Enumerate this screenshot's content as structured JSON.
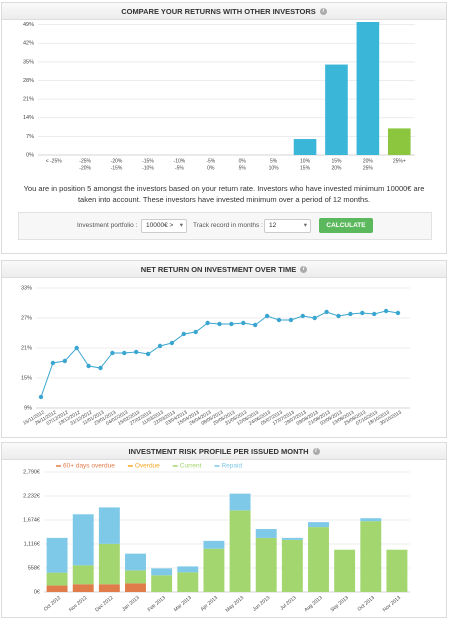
{
  "chart_data": [
    {
      "type": "bar",
      "title": "COMPARE YOUR RETURNS WITH OTHER INVESTORS",
      "categories": [
        [
          "< -25%"
        ],
        [
          "-25%",
          "-20%"
        ],
        [
          "-20%",
          "-15%"
        ],
        [
          "-15%",
          "-10%"
        ],
        [
          "-10%",
          "-5%"
        ],
        [
          "-5%",
          "0%"
        ],
        [
          "0%",
          "5%"
        ],
        [
          "5%",
          "10%"
        ],
        [
          "10%",
          "15%"
        ],
        [
          "15%",
          "20%"
        ],
        [
          "20%",
          "25%"
        ],
        [
          "25%+"
        ]
      ],
      "values": [
        0,
        0,
        0,
        0,
        0,
        0,
        0,
        0,
        6,
        34,
        50,
        10
      ],
      "colors": [
        "#3ab6d9",
        "#3ab6d9",
        "#3ab6d9",
        "#3ab6d9",
        "#3ab6d9",
        "#3ab6d9",
        "#3ab6d9",
        "#3ab6d9",
        "#3ab6d9",
        "#3ab6d9",
        "#3ab6d9",
        "#8cc63f"
      ],
      "ylim": [
        0,
        50
      ],
      "yticks": [
        {
          "value": 0,
          "label": "0%"
        },
        {
          "value": 7,
          "label": "7%"
        },
        {
          "value": 14,
          "label": "14%"
        },
        {
          "value": 21,
          "label": "21%"
        },
        {
          "value": 28,
          "label": "28%"
        },
        {
          "value": 35,
          "label": "35%"
        },
        {
          "value": 42,
          "label": "42%"
        },
        {
          "value": 49,
          "label": "49%"
        }
      ],
      "grid": true
    },
    {
      "type": "line",
      "title": "NET RETURN ON INVESTMENT OVER TIME",
      "x": [
        "15/11/2012",
        "26/11/2012",
        "07/12/2012",
        "19/12/2012",
        "31/12/2012",
        "11/01/2013",
        "23/01/2013",
        "04/02/2013",
        "15/02/2013",
        "27/02/2013",
        "11/03/2013",
        "22/03/2013",
        "03/04/2013",
        "15/04/2013",
        "26/04/2013",
        "08/05/2013",
        "20/05/2013",
        "31/05/2013",
        "12/06/2013",
        "24/06/2013",
        "05/07/2013",
        "17/07/2013",
        "29/07/2013",
        "09/08/2013",
        "21/08/2013",
        "02/09/2013",
        "13/09/2013",
        "25/09/2013",
        "07/10/2013",
        "18/10/2013",
        "30/10/2013"
      ],
      "values": [
        11.2,
        18,
        18.4,
        21,
        17.4,
        17,
        20,
        20,
        20.2,
        19.8,
        21.4,
        22,
        23.8,
        24.2,
        26,
        25.8,
        25.8,
        26,
        25.6,
        27.4,
        26.6,
        26.6,
        27.4,
        27,
        28.2,
        27.4,
        27.8,
        28,
        27.8,
        28.4,
        28
      ],
      "color": "#3aa6d0",
      "ylim": [
        9,
        33
      ],
      "yticks": [
        {
          "value": 9,
          "label": "9%"
        },
        {
          "value": 15,
          "label": "15%"
        },
        {
          "value": 21,
          "label": "21%"
        },
        {
          "value": 27,
          "label": "27%"
        },
        {
          "value": 33,
          "label": "33%"
        }
      ],
      "grid": true
    },
    {
      "type": "stacked_bar",
      "title": "INVESTMENT RISK PROFILE PER ISSUED MONTH",
      "categories": [
        "Oct 2012",
        "Nov 2012",
        "Dec 2012",
        "Jan 2013",
        "Feb 2013",
        "Mar 2013",
        "Apr 2013",
        "May 2013",
        "Jun 2013",
        "Jul 2013",
        "Aug 2013",
        "Sep 2013",
        "Oct 2013",
        "Nov 2013"
      ],
      "series": [
        {
          "name": "60+ days overdue",
          "color": "#e07b4a",
          "values": [
            150,
            180,
            180,
            200,
            0,
            0,
            0,
            0,
            0,
            0,
            0,
            0,
            0,
            0
          ]
        },
        {
          "name": "Overdue",
          "color": "#f5a623",
          "values": [
            0,
            0,
            0,
            0,
            0,
            0,
            0,
            0,
            0,
            0,
            0,
            0,
            0,
            0
          ]
        },
        {
          "name": "Current",
          "color": "#a3d66e",
          "values": [
            300,
            440,
            940,
            303,
            389,
            458,
            1006,
            1899,
            1258,
            1212,
            1509,
            983,
            1647,
            983
          ]
        },
        {
          "name": "Repaid",
          "color": "#7ec8e8",
          "values": [
            808,
            1187,
            847,
            389,
            160,
            137,
            183,
            388,
            206,
            46,
            115,
            0,
            68,
            0
          ]
        }
      ],
      "ylim": [
        0,
        2790
      ],
      "yticks": [
        {
          "value": 0,
          "label": "0€"
        },
        {
          "value": 558,
          "label": "558€"
        },
        {
          "value": 1116,
          "label": "1,116€"
        },
        {
          "value": 1674,
          "label": "1,674€"
        },
        {
          "value": 2232,
          "label": "2,232€"
        },
        {
          "value": 2790,
          "label": "2,790€"
        }
      ],
      "grid": true
    }
  ],
  "position_text": "You are in position 5 amongst the investors based on your return rate. Investors who have invested minimum 10000€ are taken into account. These investors have invested minimum over a period of 12 months.",
  "form": {
    "portfolio_label": "Investment portfolio :",
    "portfolio_value": "10000€ >",
    "track_label": "Track record in months :",
    "track_value": "12",
    "button": "CALCULATE"
  }
}
